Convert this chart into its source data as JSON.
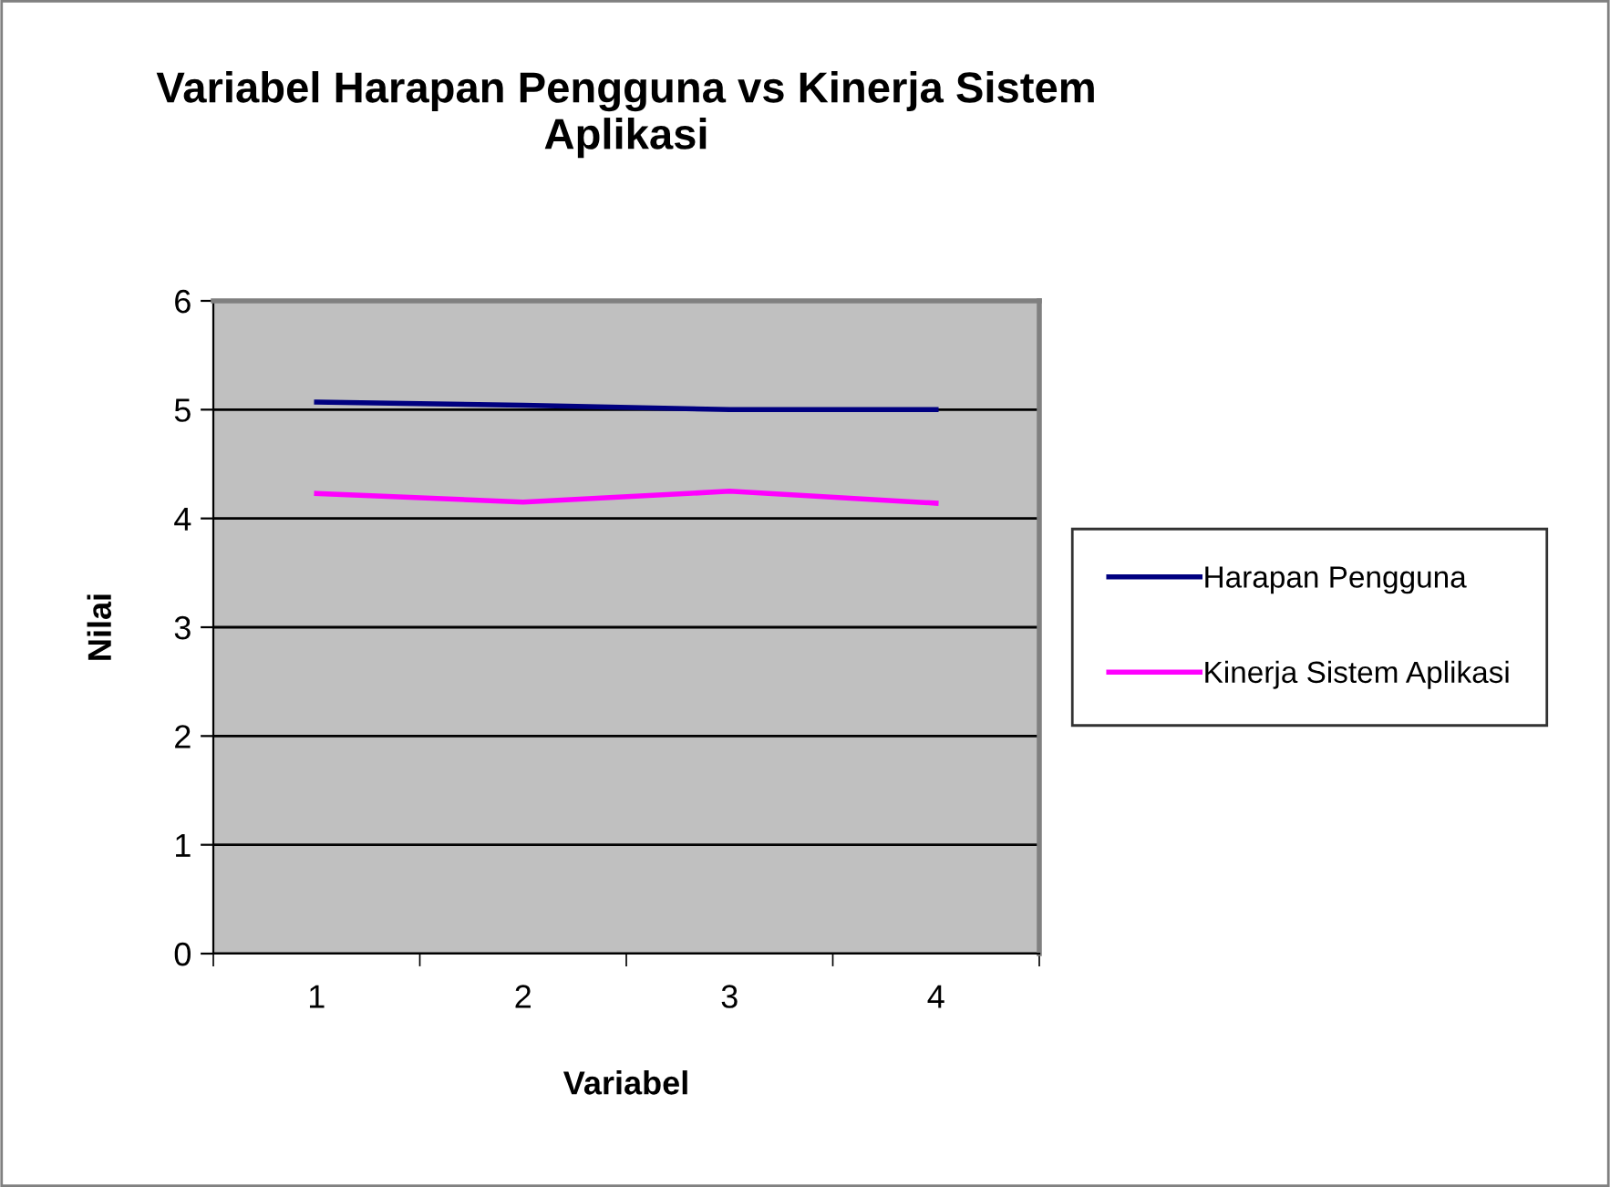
{
  "chart_data": {
    "type": "line",
    "title": "Variabel Harapan Pengguna vs Kinerja Sistem\nAplikasi",
    "xlabel": "Variabel",
    "ylabel": "Nilai",
    "categories": [
      "1",
      "2",
      "3",
      "4"
    ],
    "series": [
      {
        "name": "Harapan Pengguna",
        "color": "#000080",
        "values": [
          5.07,
          5.04,
          5.0,
          5.0
        ]
      },
      {
        "name": "Kinerja Sistem Aplikasi",
        "color": "#ff00ff",
        "values": [
          4.23,
          4.15,
          4.25,
          4.14
        ]
      }
    ],
    "ylim": [
      0,
      6
    ],
    "yticks": [
      0,
      1,
      2,
      3,
      4,
      5,
      6
    ],
    "grid": "y",
    "legend": "right",
    "marker": "none",
    "line_style": "solid"
  }
}
